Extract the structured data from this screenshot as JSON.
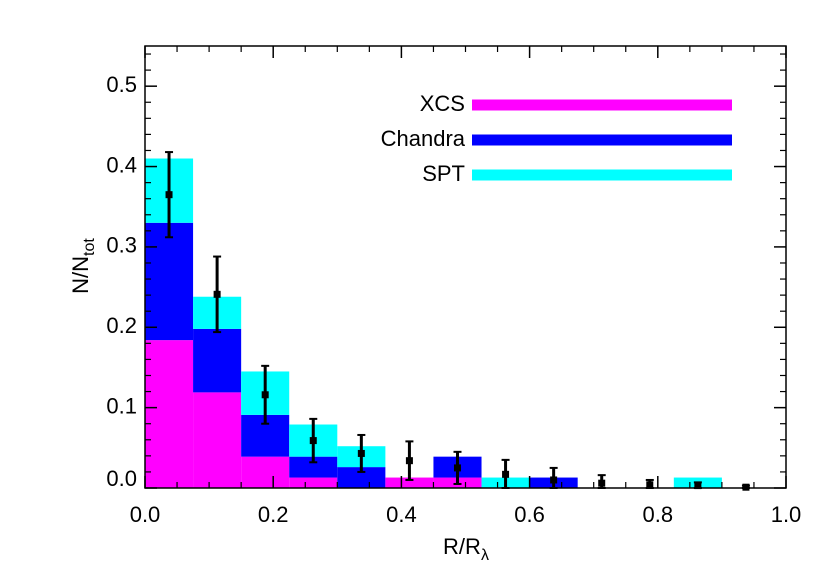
{
  "chart_data": {
    "type": "histogram",
    "stacked": true,
    "x_label": "R/R",
    "x_label_sub": "λ",
    "y_label": "N/N",
    "y_label_sub": "tot",
    "bins": [
      0,
      0.075,
      0.15,
      0.225,
      0.3,
      0.375,
      0.45,
      0.525,
      0.6,
      0.675,
      0.75,
      0.825,
      0.9,
      0.975
    ],
    "series": [
      {
        "name": "XCS",
        "color": "#ff00ff",
        "values": [
          0.184,
          0.119,
          0.039,
          0.013,
          0,
          0.013,
          0.013,
          0,
          0,
          0,
          0,
          0,
          0
        ]
      },
      {
        "name": "Chandra",
        "color": "#0000ff",
        "values": [
          0.146,
          0.079,
          0.052,
          0.026,
          0.026,
          0,
          0.026,
          0,
          0.013,
          0,
          0,
          0,
          0
        ]
      },
      {
        "name": "SPT",
        "color": "#00ffff",
        "values": [
          0.08,
          0.04,
          0.054,
          0.04,
          0.026,
          0,
          0,
          0.013,
          0,
          0,
          0,
          0.013,
          0
        ]
      }
    ],
    "points": {
      "x": [
        0.0375,
        0.1125,
        0.1875,
        0.2625,
        0.3375,
        0.4125,
        0.4875,
        0.5625,
        0.6375,
        0.7125,
        0.7875,
        0.8625,
        0.9375
      ],
      "values": [
        0.365,
        0.241,
        0.116,
        0.059,
        0.043,
        0.034,
        0.025,
        0.017,
        0.01,
        0.006,
        0.004,
        0.003,
        0.001
      ],
      "errors": [
        0.053,
        0.047,
        0.036,
        0.027,
        0.023,
        0.024,
        0.02,
        0.018,
        0.015,
        0.01,
        0.006,
        0.004,
        0.002
      ],
      "color": "#000000"
    },
    "xlim": [
      0,
      1
    ],
    "ylim": [
      0,
      0.55
    ],
    "xticks": [
      {
        "value": 0,
        "label": "0.0"
      },
      0.2,
      0.4,
      0.6,
      0.8,
      {
        "value": 1,
        "label": "1.0"
      }
    ],
    "yticks": [
      {
        "value": 0,
        "label": "0.0"
      },
      0.1,
      0.2,
      0.3,
      0.4,
      0.5
    ],
    "x_minor_per_major": 4,
    "y_minor_per_major": 5
  }
}
